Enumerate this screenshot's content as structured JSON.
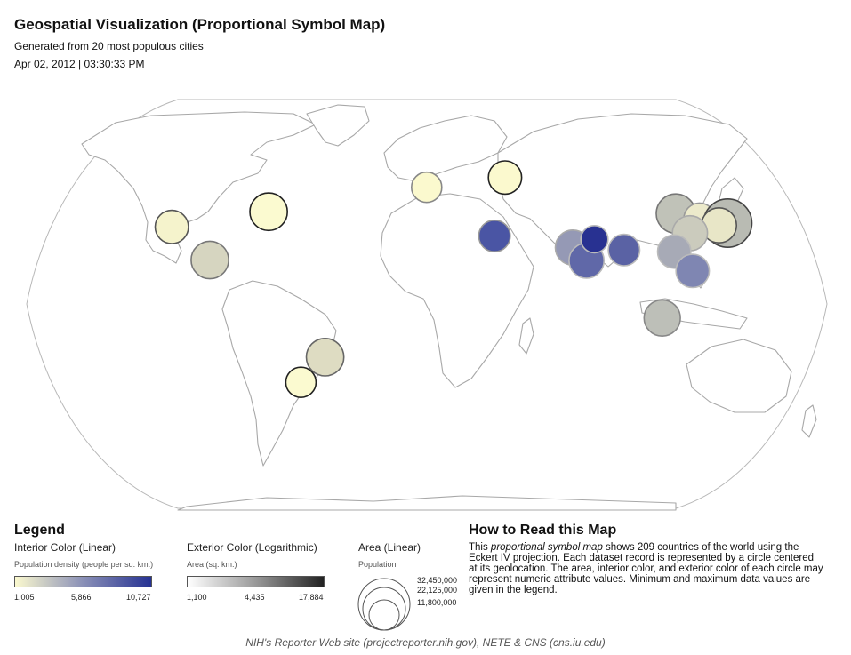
{
  "header": {
    "title": "Geospatial Visualization (Proportional Symbol Map)",
    "subtitle": "Generated from 20 most populous cities",
    "timestamp": "Apr 02, 2012 | 03:30:33 PM"
  },
  "legend": {
    "title": "Legend",
    "interior": {
      "heading": "Interior Color (Linear)",
      "label": "Population density (people per sq. km.)",
      "min": "1,005",
      "mid": "5,866",
      "max": "10,727",
      "colors": [
        "#fbf9cf",
        "#8a90b7",
        "#263293"
      ]
    },
    "exterior": {
      "heading": "Exterior Color (Logarithmic)",
      "label": "Area (sq. km.)",
      "min": "1,100",
      "mid": "4,435",
      "max": "17,884",
      "colors": [
        "#ffffff",
        "#999999",
        "#222222"
      ]
    },
    "area": {
      "heading": "Area (Linear)",
      "label": "Population",
      "values": [
        "32,450,000",
        "22,125,000",
        "11,800,000"
      ]
    }
  },
  "howto": {
    "title": "How to Read this Map",
    "before_italic": "This ",
    "italic": "proportional symbol map",
    "after_italic": " shows 209 countries of the world using the Eckert IV projection. Each dataset record is represented by a circle centered at its geolocation. The area, interior color, and exterior color of each circle may represent numeric attribute values. Minimum and maximum data values are given in the legend."
  },
  "footer": "NIH's Reporter Web site (projectreporter.nih.gov), NETE & CNS (cns.iu.edu)",
  "map": {
    "land_color": "#ffffff",
    "border_color": "#a8a8a8",
    "symbols": [
      {
        "name": "los-angeles",
        "lon": -118.2,
        "lat": 34.0,
        "size": 0.55,
        "fill": "#f5f3cc",
        "stroke": "#555555"
      },
      {
        "name": "new-york",
        "lon": -74.0,
        "lat": 40.7,
        "size": 0.62,
        "fill": "#fbfad0",
        "stroke": "#222222"
      },
      {
        "name": "mexico-city",
        "lon": -99.1,
        "lat": 19.4,
        "size": 0.62,
        "fill": "#d6d5c0",
        "stroke": "#777777"
      },
      {
        "name": "sao-paulo",
        "lon": -46.6,
        "lat": -23.5,
        "size": 0.62,
        "fill": "#dedcc2",
        "stroke": "#666666"
      },
      {
        "name": "buenos-aires",
        "lon": -58.4,
        "lat": -34.6,
        "size": 0.5,
        "fill": "#fbfad0",
        "stroke": "#222222"
      },
      {
        "name": "london",
        "lon": -0.1,
        "lat": 51.5,
        "size": 0.5,
        "fill": "#fbf9ce",
        "stroke": "#888888"
      },
      {
        "name": "moscow",
        "lon": 37.6,
        "lat": 55.8,
        "size": 0.55,
        "fill": "#fbf9ce",
        "stroke": "#222222"
      },
      {
        "name": "cairo",
        "lon": 31.2,
        "lat": 30.0,
        "size": 0.52,
        "fill": "#4a55a4",
        "stroke": "#999999"
      },
      {
        "name": "karachi",
        "lon": 67.0,
        "lat": 24.9,
        "size": 0.58,
        "fill": "#9599b5",
        "stroke": "#aaaaaa"
      },
      {
        "name": "mumbai",
        "lon": 72.9,
        "lat": 19.1,
        "size": 0.58,
        "fill": "#6068a8",
        "stroke": "#bbbbbb"
      },
      {
        "name": "delhi",
        "lon": 77.2,
        "lat": 28.6,
        "size": 0.45,
        "fill": "#283191",
        "stroke": "#bbbbbb"
      },
      {
        "name": "dhaka",
        "lon": 90.4,
        "lat": 23.8,
        "size": 0.52,
        "fill": "#5a62a4",
        "stroke": "#bbbbbb"
      },
      {
        "name": "beijing",
        "lon": 116.4,
        "lat": 39.9,
        "size": 0.65,
        "fill": "#c0c2b8",
        "stroke": "#777777"
      },
      {
        "name": "seoul",
        "lon": 127.0,
        "lat": 37.6,
        "size": 0.52,
        "fill": "#eceacb",
        "stroke": "#999999"
      },
      {
        "name": "tokyo",
        "lon": 139.7,
        "lat": 35.7,
        "size": 0.8,
        "fill": "#b9bbb3",
        "stroke": "#444444"
      },
      {
        "name": "osaka",
        "lon": 135.5,
        "lat": 34.7,
        "size": 0.58,
        "fill": "#e8e6c7",
        "stroke": "#555555"
      },
      {
        "name": "shanghai",
        "lon": 121.5,
        "lat": 31.2,
        "size": 0.58,
        "fill": "#cbcbbd",
        "stroke": "#aaaaaa"
      },
      {
        "name": "guangzhou",
        "lon": 113.3,
        "lat": 23.1,
        "size": 0.55,
        "fill": "#a7aab6",
        "stroke": "#bbbbbb"
      },
      {
        "name": "manila",
        "lon": 121.0,
        "lat": 14.6,
        "size": 0.55,
        "fill": "#7f86b2",
        "stroke": "#bbbbbb"
      },
      {
        "name": "jakarta",
        "lon": 106.8,
        "lat": -6.2,
        "size": 0.6,
        "fill": "#bdbfb8",
        "stroke": "#888888"
      }
    ]
  }
}
